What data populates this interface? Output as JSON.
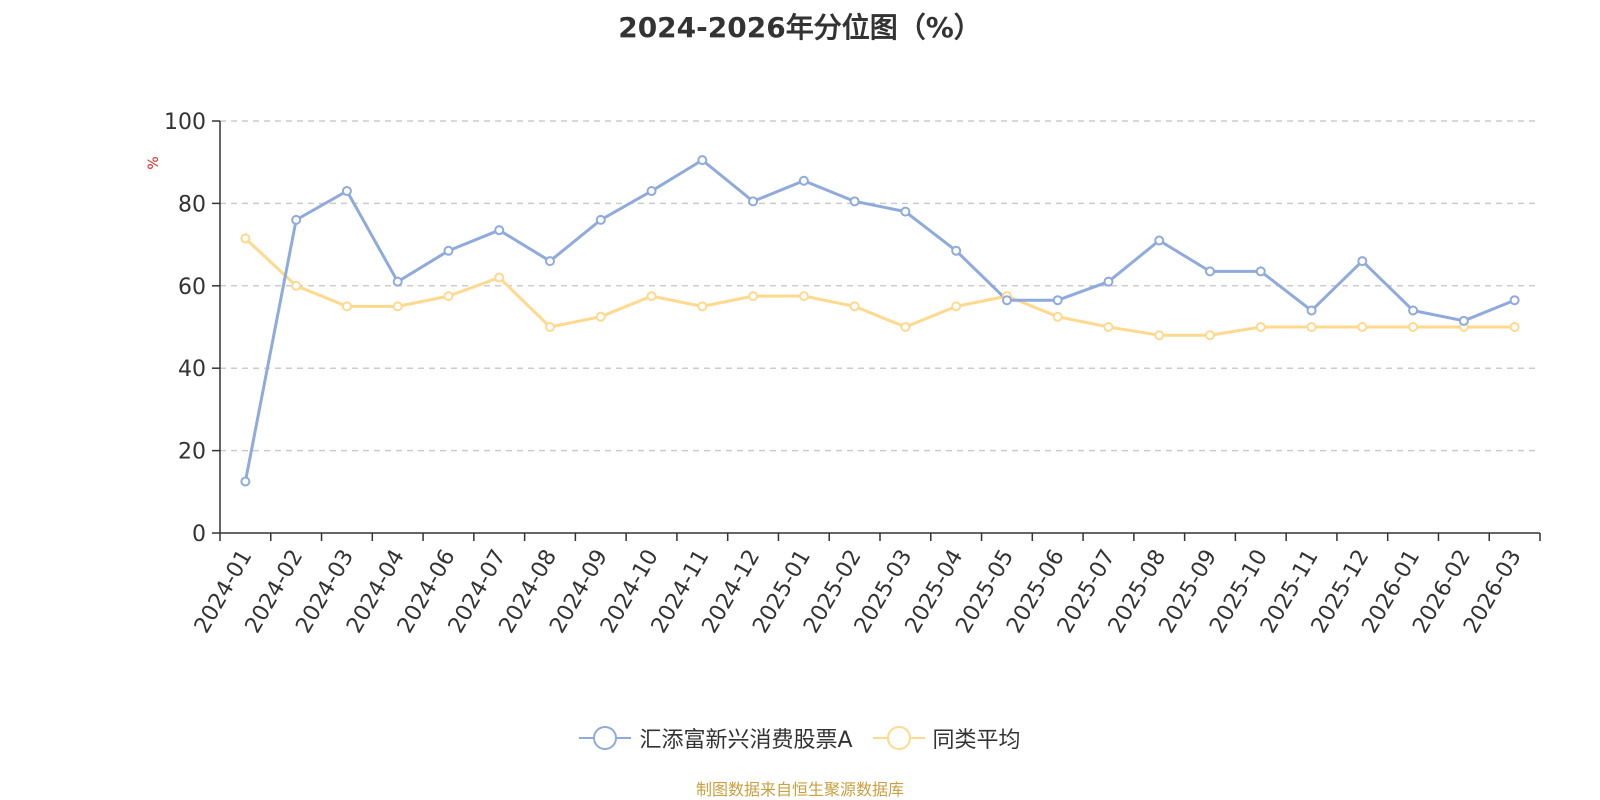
{
  "chart_data": {
    "type": "line",
    "title": "2024-2026年分位图（%）",
    "ylabel": "%",
    "ylim": [
      0,
      100
    ],
    "yticks": [
      0,
      20,
      40,
      60,
      80,
      100
    ],
    "grid": true,
    "legend_position": "bottom",
    "categories": [
      "2024-01",
      "2024-02",
      "2024-03",
      "2024-04",
      "2024-06",
      "2024-07",
      "2024-08",
      "2024-09",
      "2024-10",
      "2024-11",
      "2024-12",
      "2025-01",
      "2025-02",
      "2025-03",
      "2025-04",
      "2025-05",
      "2025-06",
      "2025-07",
      "2025-08",
      "2025-09",
      "2025-10",
      "2025-11",
      "2025-12",
      "2026-01",
      "2026-02",
      "2026-03"
    ],
    "series": [
      {
        "name": "汇添富新兴消费股票A",
        "color": "#8faadc",
        "values": [
          12.5,
          76,
          83,
          61,
          68.5,
          73.5,
          66,
          76,
          83,
          90.5,
          80.5,
          85.5,
          80.5,
          78,
          68.5,
          56.5,
          56.5,
          61,
          71,
          63.5,
          63.5,
          54,
          66,
          54,
          51.5,
          56.5
        ]
      },
      {
        "name": "同类平均",
        "color": "#ffd98e",
        "values": [
          71.5,
          60,
          55,
          55,
          57.5,
          62,
          50,
          52.5,
          57.5,
          55,
          57.5,
          57.5,
          55,
          50,
          55,
          57.5,
          52.5,
          50,
          48,
          48,
          50,
          50,
          50,
          50,
          50,
          50
        ]
      }
    ]
  },
  "footer": {
    "source": "制图数据来自恒生聚源数据库"
  }
}
